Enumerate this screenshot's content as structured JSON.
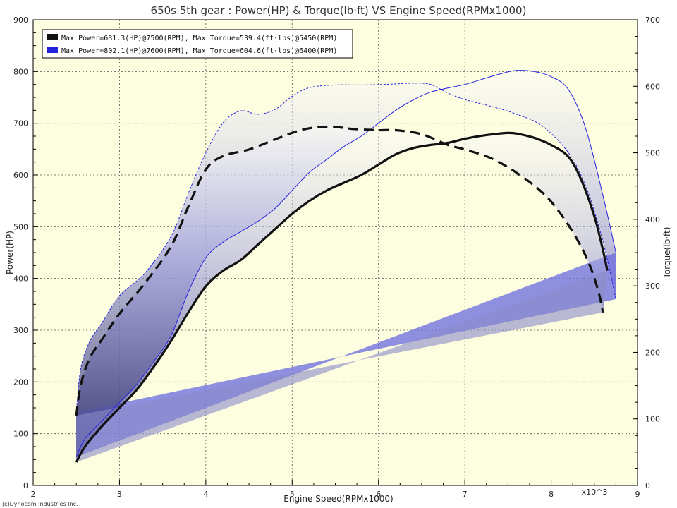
{
  "chart_data": {
    "type": "line",
    "title": "650s 5th gear : Power(HP) & Torque(lb·ft) VS Engine Speed(RPMx1000)",
    "xlabel": "Engine Speed(RPMx1000)",
    "x_multiplier_label": "x10^3",
    "ylabel_left": "Power(HP)",
    "ylabel_right": "Torque(lb·ft)",
    "xlim": [
      2,
      9
    ],
    "ylim_left": [
      0,
      900
    ],
    "ylim_right": [
      0,
      700
    ],
    "x_ticks": [
      "2",
      "3",
      "4",
      "5",
      "6",
      "7",
      "8",
      "9"
    ],
    "y_left_ticks": [
      "0",
      "100",
      "200",
      "300",
      "400",
      "500",
      "600",
      "700",
      "800",
      "900"
    ],
    "y_right_ticks": [
      "0",
      "100",
      "200",
      "300",
      "400",
      "500",
      "600",
      "700"
    ],
    "grid": true,
    "legend_position": "top-left",
    "background": "#fdfde0",
    "copyright": "(c)Dynocom Industries Inc.",
    "series": [
      {
        "name": "Max Power=681.3(HP)@7500(RPM), Max Torque=539.4(ft·lbs)@5450(RPM)",
        "color": "#111111",
        "power_hp": {
          "x": [
            2.5,
            2.6,
            2.8,
            3.0,
            3.2,
            3.4,
            3.6,
            3.8,
            4.0,
            4.2,
            4.4,
            4.6,
            4.8,
            5.0,
            5.2,
            5.4,
            5.6,
            5.8,
            6.0,
            6.2,
            6.4,
            6.6,
            6.8,
            7.0,
            7.2,
            7.4,
            7.5,
            7.6,
            7.8,
            8.0,
            8.2,
            8.35,
            8.5,
            8.6,
            8.65
          ],
          "y": [
            45,
            75,
            115,
            150,
            185,
            230,
            280,
            335,
            385,
            415,
            435,
            465,
            495,
            525,
            550,
            570,
            585,
            600,
            620,
            640,
            652,
            658,
            662,
            670,
            676,
            680,
            681.3,
            680,
            672,
            658,
            635,
            590,
            520,
            455,
            415
          ]
        },
        "torque_lbft": {
          "x": [
            2.5,
            2.55,
            2.65,
            2.8,
            3.0,
            3.3,
            3.6,
            3.8,
            4.0,
            4.2,
            4.5,
            4.8,
            5.0,
            5.2,
            5.45,
            5.7,
            6.0,
            6.2,
            6.5,
            6.8,
            7.0,
            7.3,
            7.6,
            7.9,
            8.1,
            8.3,
            8.45,
            8.55,
            8.6
          ],
          "y": [
            105,
            150,
            190,
            220,
            258,
            305,
            360,
            420,
            475,
            495,
            505,
            520,
            530,
            537,
            539.4,
            536,
            534,
            534,
            528,
            512,
            505,
            492,
            470,
            440,
            410,
            370,
            330,
            290,
            260
          ]
        }
      },
      {
        "name": "Max Power=802.1(HP)@7600(RPM), Max Torque=604.6(ft·lbs)@6400(RPM)",
        "color": "#2222dd",
        "power_hp": {
          "x": [
            2.5,
            2.6,
            2.8,
            3.0,
            3.2,
            3.4,
            3.6,
            3.8,
            4.0,
            4.2,
            4.4,
            4.6,
            4.8,
            5.0,
            5.2,
            5.4,
            5.6,
            5.8,
            6.0,
            6.2,
            6.4,
            6.6,
            6.8,
            7.0,
            7.2,
            7.4,
            7.6,
            7.8,
            8.0,
            8.2,
            8.4,
            8.6,
            8.75
          ],
          "y": [
            55,
            90,
            125,
            160,
            195,
            240,
            290,
            375,
            440,
            470,
            490,
            510,
            535,
            570,
            605,
            630,
            655,
            675,
            700,
            725,
            745,
            760,
            768,
            775,
            785,
            795,
            802.1,
            800,
            790,
            765,
            690,
            560,
            450
          ]
        },
        "torque_lbft": {
          "x": [
            2.5,
            2.55,
            2.65,
            2.8,
            3.0,
            3.3,
            3.6,
            3.8,
            4.0,
            4.2,
            4.4,
            4.6,
            4.8,
            5.0,
            5.2,
            5.5,
            5.8,
            6.1,
            6.4,
            6.6,
            6.8,
            7.0,
            7.3,
            7.6,
            7.9,
            8.2,
            8.4,
            8.55,
            8.65,
            8.75
          ],
          "y": [
            110,
            175,
            215,
            245,
            285,
            320,
            375,
            440,
            500,
            545,
            563,
            558,
            565,
            585,
            598,
            602,
            602,
            603,
            604.6,
            603,
            590,
            580,
            570,
            558,
            540,
            500,
            450,
            390,
            340,
            280
          ]
        }
      }
    ]
  }
}
